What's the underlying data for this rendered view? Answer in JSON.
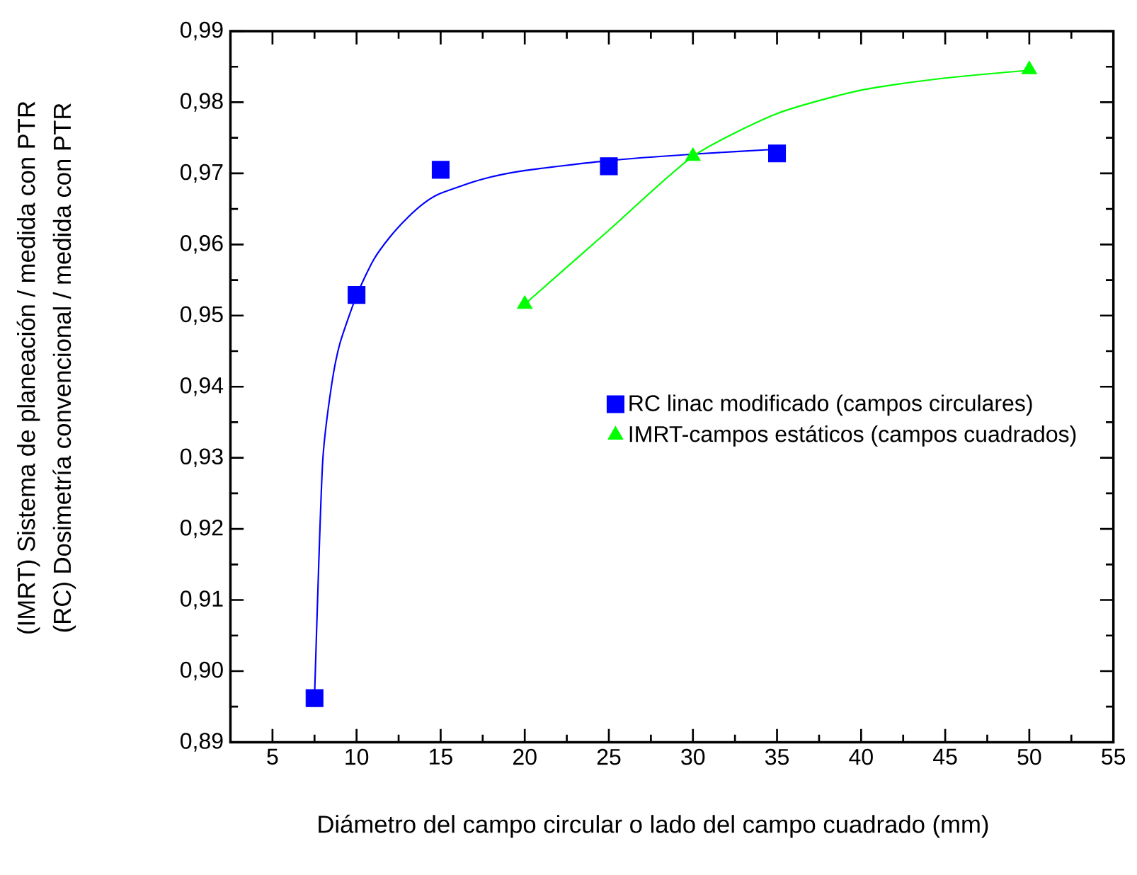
{
  "chart_data": {
    "type": "scatter",
    "xlabel": "Diámetro del campo circular o lado del campo cuadrado (mm)",
    "ylabel": [
      "(IMRT) Sistema de planeación / medida con PTR",
      "(RC) Dosimetría convencional / medida con PTR"
    ],
    "xlim": [
      2.5,
      55
    ],
    "xticks": [
      5,
      10,
      15,
      20,
      25,
      30,
      35,
      40,
      45,
      50,
      55
    ],
    "ylim": [
      0.89,
      0.99
    ],
    "yticks": [
      {
        "value": 0.89,
        "label": "0,89"
      },
      {
        "value": 0.9,
        "label": "0,90"
      },
      {
        "value": 0.91,
        "label": "0,91"
      },
      {
        "value": 0.92,
        "label": "0,92"
      },
      {
        "value": 0.93,
        "label": "0,93"
      },
      {
        "value": 0.94,
        "label": "0,94"
      },
      {
        "value": 0.95,
        "label": "0,95"
      },
      {
        "value": 0.96,
        "label": "0,96"
      },
      {
        "value": 0.97,
        "label": "0,97"
      },
      {
        "value": 0.98,
        "label": "0,98"
      },
      {
        "value": 0.99,
        "label": "0,99"
      }
    ],
    "grid": false,
    "legend": "right",
    "series": [
      {
        "type": "line",
        "color": "#0000ff",
        "marker": "none",
        "x": [
          7.5,
          7.75,
          8,
          8.5,
          9,
          10,
          11,
          12,
          13,
          14,
          15,
          17.5,
          20,
          25,
          30,
          35
        ],
        "values": [
          0.8963,
          0.915,
          0.93,
          0.94,
          0.946,
          0.9528,
          0.9578,
          0.9611,
          0.9637,
          0.9658,
          0.9672,
          0.9692,
          0.9704,
          0.9718,
          0.9727,
          0.9734
        ]
      },
      {
        "type": "line",
        "color": "#00ff00",
        "marker": "none",
        "x": [
          20,
          25,
          30,
          35,
          40,
          45,
          50
        ],
        "values": [
          0.9516,
          0.962,
          0.9724,
          0.9784,
          0.9817,
          0.9834,
          0.9845
        ]
      },
      {
        "name": "RC linac modificado (campos circulares)",
        "color": "#0000ff",
        "marker": "square",
        "x": [
          7.5,
          10,
          15,
          25,
          35
        ],
        "values": [
          0.8962,
          0.9529,
          0.9705,
          0.971,
          0.9728
        ]
      },
      {
        "name": "IMRT-campos estáticos (campos cuadrados)",
        "color": "#00ff00",
        "marker": "triangle",
        "x": [
          20,
          30,
          50
        ],
        "values": [
          0.9516,
          0.9724,
          0.9846
        ]
      }
    ]
  }
}
